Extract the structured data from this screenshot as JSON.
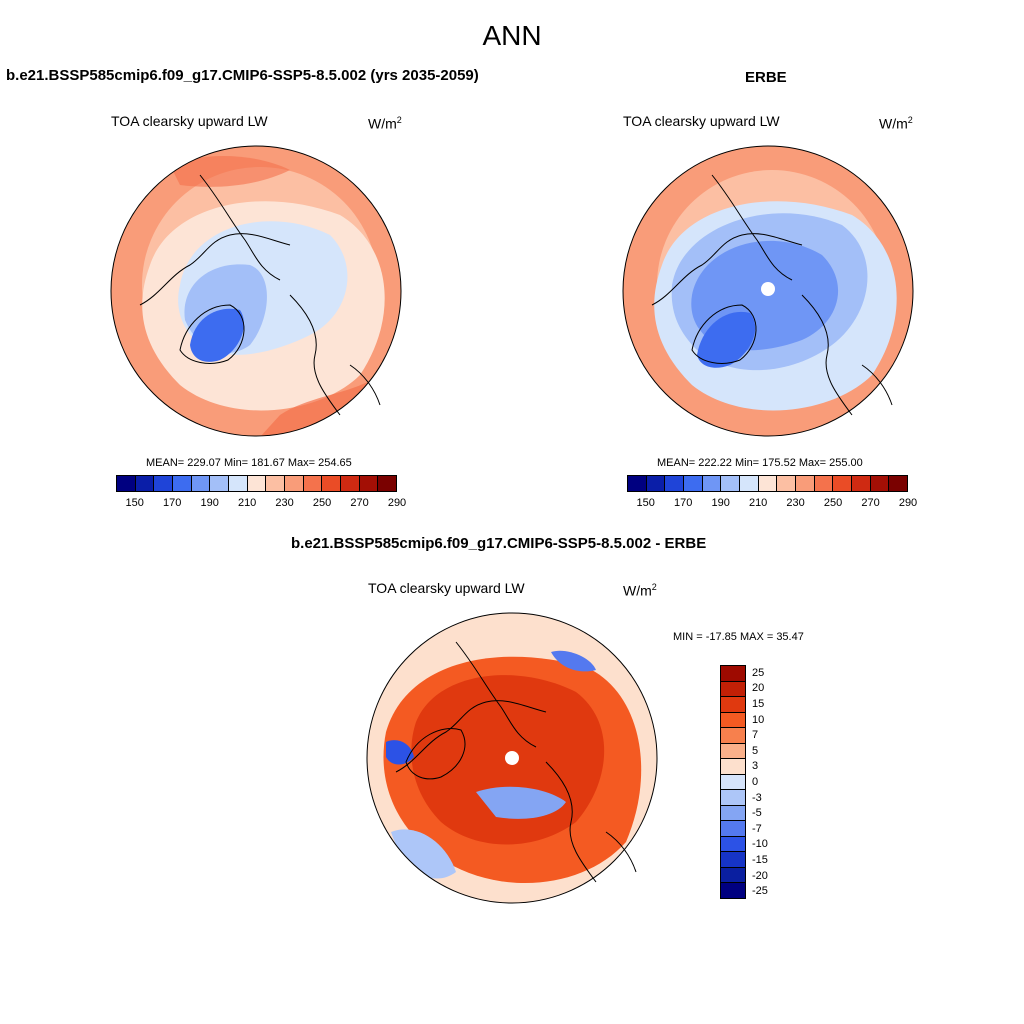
{
  "page_title": "ANN",
  "colors": {
    "abs_levels": [
      "#000080",
      "#0a1ea8",
      "#1f44d8",
      "#3d6cf0",
      "#6f96f5",
      "#a3bff8",
      "#d5e5fb",
      "#fde4d6",
      "#fcbfa3",
      "#f99c79",
      "#f4724c",
      "#ea4c26",
      "#cf2a12",
      "#a30f05",
      "#7a0100"
    ],
    "diff_levels_top_to_bottom": [
      "#9e0a00",
      "#c22006",
      "#e0390f",
      "#f45a22",
      "#f7804d",
      "#fab08a",
      "#fde0cd",
      "#d6e4fb",
      "#adc6f8",
      "#84a5f3",
      "#5479ef",
      "#2c52e6",
      "#1634c6",
      "#0a1fa0",
      "#000080"
    ]
  },
  "panels": {
    "model": {
      "heading": "b.e21.BSSP585cmip6.f09_g17.CMIP6-SSP5-8.5.002 (yrs 2035-2059)",
      "variable": "TOA clearsky upward LW",
      "units": "W/m",
      "units_sup": "2",
      "stats": "MEAN= 229.07  Min= 181.67  Max= 254.65"
    },
    "obs": {
      "heading": "ERBE",
      "variable": "TOA clearsky upward LW",
      "units": "W/m",
      "units_sup": "2",
      "stats": "MEAN= 222.22  Min= 175.52  Max= 255.00"
    },
    "diff": {
      "heading": "b.e21.BSSP585cmip6.f09_g17.CMIP6-SSP5-8.5.002 - ERBE",
      "variable": "TOA clearsky upward LW",
      "units": "W/m",
      "units_sup": "2",
      "stats": "MIN = -17.85 MAX =  35.47"
    }
  },
  "colorbars": {
    "abs": {
      "tick_labels": [
        "150",
        "170",
        "190",
        "210",
        "230",
        "250",
        "270",
        "290"
      ]
    },
    "diff": {
      "tick_labels": [
        "25",
        "20",
        "15",
        "10",
        "7",
        "5",
        "3",
        "0",
        "-3",
        "-5",
        "-7",
        "-10",
        "-15",
        "-20",
        "-25"
      ]
    }
  }
}
